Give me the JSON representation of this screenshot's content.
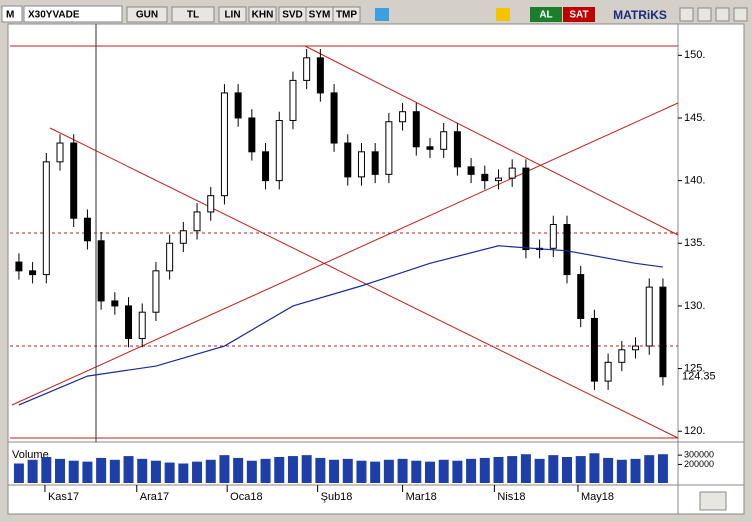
{
  "toolbar": {
    "symbol": "X30YVADE",
    "buttons": [
      "GUN",
      "TL",
      "LIN",
      "KHN",
      "SVD",
      "SYM",
      "TMP"
    ],
    "buy": "AL",
    "sell": "SAT",
    "brand": "MATRiKS"
  },
  "chart_data": {
    "type": "candlestick",
    "x": [
      0,
      1,
      2,
      3,
      4,
      5,
      6,
      7,
      8,
      9,
      10,
      11,
      12,
      13,
      14,
      15,
      16,
      17,
      18,
      19,
      20,
      21,
      22,
      23,
      24,
      25,
      26,
      27,
      28,
      29,
      30,
      31,
      32,
      33,
      34,
      35,
      36,
      37,
      38,
      39,
      40,
      41,
      42,
      43,
      44,
      45,
      46,
      47
    ],
    "open": [
      133.5,
      132.8,
      132.5,
      141.5,
      143.0,
      137.0,
      135.2,
      130.4,
      130.0,
      127.4,
      129.5,
      132.8,
      135.0,
      136.0,
      137.5,
      138.8,
      147.0,
      145.0,
      142.3,
      140.0,
      144.8,
      148.0,
      149.8,
      147.0,
      143.0,
      140.3,
      142.3,
      140.5,
      144.7,
      145.5,
      142.7,
      142.5,
      143.9,
      141.1,
      140.5,
      140.0,
      140.2,
      141.0,
      134.5,
      134.6,
      136.5,
      132.5,
      129.0,
      124.0,
      125.5,
      126.5,
      126.8,
      131.5
    ],
    "high": [
      134.2,
      133.5,
      142.2,
      143.7,
      143.7,
      137.7,
      135.9,
      131.1,
      130.7,
      130.2,
      133.5,
      135.7,
      136.7,
      138.2,
      139.5,
      147.7,
      147.7,
      145.7,
      143.0,
      145.5,
      148.7,
      150.5,
      150.5,
      147.7,
      143.7,
      143.0,
      143.0,
      145.4,
      146.2,
      146.2,
      143.4,
      144.6,
      144.6,
      141.8,
      141.2,
      140.9,
      141.7,
      141.7,
      135.3,
      137.2,
      137.2,
      133.2,
      129.7,
      126.2,
      127.2,
      127.5,
      132.2,
      132.2
    ],
    "low": [
      132.1,
      131.8,
      131.8,
      140.8,
      136.3,
      134.5,
      129.7,
      129.3,
      126.7,
      126.7,
      128.8,
      132.1,
      134.3,
      135.3,
      136.8,
      138.1,
      144.3,
      141.6,
      139.3,
      139.3,
      144.1,
      147.3,
      146.3,
      142.3,
      139.6,
      139.6,
      139.8,
      139.8,
      144.0,
      142.0,
      141.8,
      141.8,
      140.4,
      139.8,
      139.3,
      139.3,
      139.5,
      133.8,
      133.8,
      133.9,
      131.8,
      128.3,
      123.3,
      123.3,
      124.8,
      125.8,
      126.1,
      123.65
    ],
    "close": [
      132.8,
      132.5,
      141.5,
      143.0,
      137.0,
      135.2,
      130.4,
      130.0,
      127.4,
      129.5,
      132.8,
      135.0,
      136.0,
      137.5,
      138.8,
      147.0,
      145.0,
      142.3,
      140.0,
      144.8,
      148.0,
      149.8,
      147.0,
      143.0,
      140.3,
      142.3,
      140.5,
      144.7,
      145.5,
      142.7,
      142.5,
      143.9,
      141.1,
      140.5,
      140.0,
      140.2,
      141.0,
      134.5,
      134.6,
      136.5,
      132.5,
      129.0,
      124.0,
      125.5,
      126.5,
      126.8,
      131.5,
      124.35
    ],
    "last_price": 124.35,
    "moving_average": {
      "color": "#1a2a9a",
      "x": [
        0,
        5,
        10,
        15,
        20,
        25,
        30,
        35,
        40,
        45,
        47
      ],
      "values": [
        122.1,
        124.4,
        125.2,
        126.8,
        130.0,
        131.6,
        133.4,
        134.8,
        134.4,
        133.4,
        133.1
      ]
    },
    "xlim": [
      -0.65,
      48.1
    ],
    "ylim": [
      119.3,
      152.5
    ],
    "yticks": [
      {
        "value": 120,
        "label": "120."
      },
      {
        "value": 125,
        "label": "125."
      },
      {
        "value": 130,
        "label": "130."
      },
      {
        "value": 135,
        "label": "135."
      },
      {
        "value": 140,
        "label": "140."
      },
      {
        "value": 145,
        "label": "145."
      },
      {
        "value": 150,
        "label": "150."
      }
    ],
    "xticks": [
      {
        "value": 1.9,
        "label": "Kas17"
      },
      {
        "value": 8.6,
        "label": "Ara17"
      },
      {
        "value": 15.2,
        "label": "Oca18"
      },
      {
        "value": 21.8,
        "label": "Şub18"
      },
      {
        "value": 28,
        "label": "Mar18"
      },
      {
        "value": 34.7,
        "label": "Nis18"
      },
      {
        "value": 40.8,
        "label": "May18"
      }
    ],
    "volume": {
      "title": "Volume",
      "color": "#1f3fa8",
      "ylim": [
        0,
        420000
      ],
      "yticks": [
        200000,
        300000
      ],
      "values": [
        210000,
        250000,
        280000,
        260000,
        240000,
        230000,
        270000,
        250000,
        290000,
        260000,
        240000,
        220000,
        210000,
        230000,
        250000,
        300000,
        270000,
        240000,
        260000,
        280000,
        290000,
        300000,
        270000,
        250000,
        260000,
        240000,
        230000,
        250000,
        260000,
        240000,
        230000,
        250000,
        240000,
        260000,
        270000,
        280000,
        290000,
        310000,
        260000,
        300000,
        280000,
        290000,
        320000,
        270000,
        250000,
        260000,
        300000,
        310000
      ]
    }
  }
}
